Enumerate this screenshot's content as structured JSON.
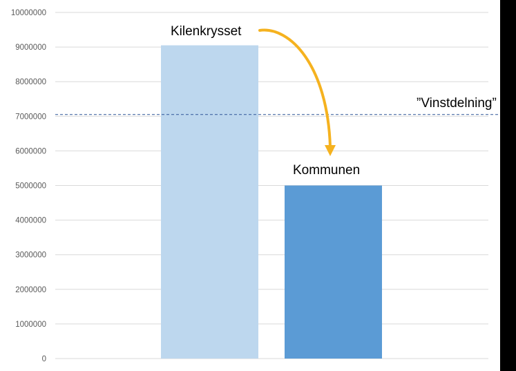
{
  "chart_data": {
    "type": "bar",
    "categories": [
      "Kilenkrysset",
      "Kommunen"
    ],
    "values": [
      9050000,
      5000000
    ],
    "bar_colors": [
      "#bdd7ee",
      "#5b9bd5"
    ],
    "ylim": [
      0,
      10000000
    ],
    "yticks": [
      "0",
      "1000000",
      "2000000",
      "3000000",
      "4000000",
      "5000000",
      "6000000",
      "7000000",
      "8000000",
      "9000000",
      "10000000"
    ],
    "grid": true,
    "reference_line": {
      "label": "”Vinstdelning”",
      "value": 7050000,
      "color": "#2e5597",
      "style": "dashed"
    },
    "arrow": {
      "from": "Kilenkrysset",
      "to": "Kommunen",
      "color": "#f5b21f"
    },
    "annotations": {
      "bar1": "Kilenkrysset",
      "bar2": "Kommunen"
    }
  }
}
